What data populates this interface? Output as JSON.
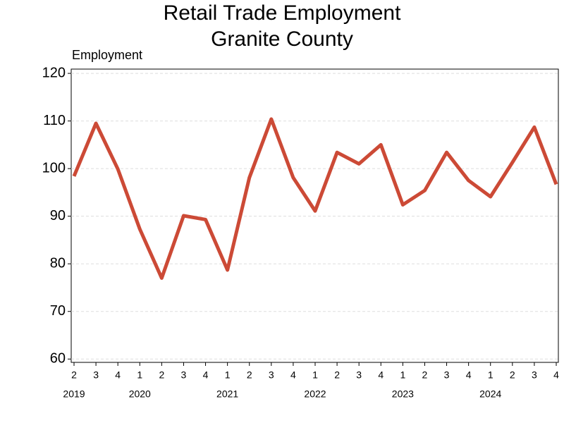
{
  "chart_data": {
    "type": "line",
    "title": "Retail Trade Employment",
    "subtitle": "Granite County",
    "y_label": "Employment",
    "categories": [
      "2",
      "3",
      "4",
      "1",
      "2",
      "3",
      "4",
      "1",
      "2",
      "3",
      "4",
      "1",
      "2",
      "3",
      "4",
      "1",
      "2",
      "3",
      "4",
      "1",
      "2",
      "3",
      "4"
    ],
    "years": [
      "2019",
      null,
      null,
      "2020",
      null,
      null,
      null,
      "2021",
      null,
      null,
      null,
      "2022",
      null,
      null,
      null,
      "2023",
      null,
      null,
      null,
      "2024",
      null,
      null,
      null
    ],
    "series": [
      {
        "name": "Employment",
        "color": "#cc4a36",
        "values": [
          98.4,
          109.5,
          99.9,
          87.3,
          77.0,
          90.1,
          89.3,
          78.7,
          98.1,
          110.4,
          98.1,
          91.1,
          103.4,
          101.0,
          105.0,
          92.4,
          95.4,
          103.4,
          97.5,
          94.1,
          101.3,
          108.7,
          96.7
        ]
      }
    ],
    "ylim": [
      59.3,
      120.9
    ],
    "yticks": [
      60,
      70,
      80,
      90,
      100,
      110,
      120
    ],
    "grid": true
  }
}
